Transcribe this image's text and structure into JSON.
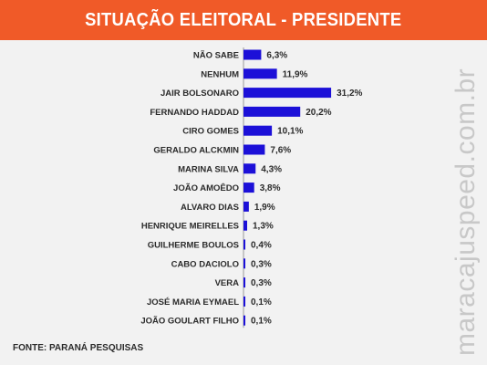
{
  "header": {
    "title": "SITUAÇÃO ELEITORAL - PRESIDENTE"
  },
  "colors": {
    "header": "#f05a28",
    "bar": "#1c10d8",
    "background": "#f2f2f2"
  },
  "chart_data": {
    "type": "bar",
    "orientation": "horizontal",
    "title": "SITUAÇÃO ELEITORAL - PRESIDENTE",
    "categories": [
      "NÃO SABE",
      "NENHUM",
      "JAIR BOLSONARO",
      "FERNANDO HADDAD",
      "CIRO GOMES",
      "GERALDO ALCKMIN",
      "MARINA SILVA",
      "JOÃO AMOÊDO",
      "ALVARO DIAS",
      "HENRIQUE MEIRELLES",
      "GUILHERME BOULOS",
      "CABO DACIOLO",
      "VERA",
      "JOSÉ MARIA EYMAEL",
      "JOÃO GOULART FILHO"
    ],
    "values": [
      6.3,
      11.9,
      31.2,
      20.2,
      10.1,
      7.6,
      4.3,
      3.8,
      1.9,
      1.3,
      0.4,
      0.3,
      0.3,
      0.1,
      0.1
    ],
    "value_labels": [
      "6,3%",
      "11,9%",
      "31,2%",
      "20,2%",
      "10,1%",
      "7,6%",
      "4,3%",
      "3,8%",
      "1,9%",
      "1,3%",
      "0,4%",
      "0,3%",
      "0,3%",
      "0,1%",
      "0,1%"
    ],
    "grid": false
  },
  "footer": {
    "source": "FONTE: PARANÁ PESQUISAS"
  },
  "watermark": "maracajuspeed.com.br"
}
